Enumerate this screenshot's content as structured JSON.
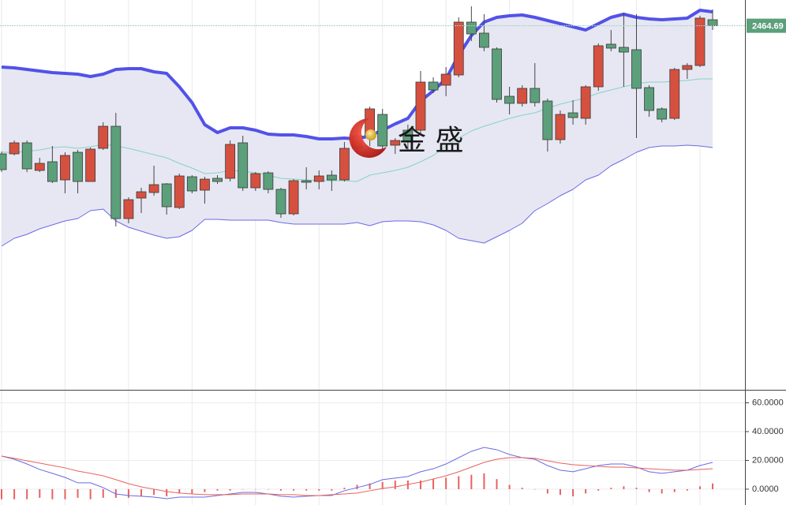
{
  "watermark": "金 盛",
  "chart_data": [
    {
      "type": "candlestick",
      "up_color": "#d6503f",
      "down_color": "#5c9f7b",
      "band_colors": {
        "upper": "#5252e8",
        "middle": "#86d3c6",
        "lower": "#6a6ae6",
        "fill": "#e6e7f2"
      },
      "ylim": [
        2234,
        2481
      ],
      "last_price": {
        "value": 2464.69,
        "label": "2464.69"
      },
      "open": [
        2383.5,
        2383.5,
        2390.5,
        2373,
        2378.5,
        2367,
        2384.5,
        2366,
        2387,
        2401,
        2342.5,
        2355.5,
        2359,
        2364.5,
        2349.5,
        2369,
        2360.5,
        2368,
        2368,
        2390.5,
        2362,
        2371.5,
        2361,
        2345.5,
        2366.5,
        2366,
        2370,
        2367,
        2387,
        2395,
        2408.5,
        2389,
        2398.5,
        2398.5,
        2429,
        2427,
        2433.5,
        2467,
        2460,
        2450,
        2420,
        2415.5,
        2425,
        2417,
        2392.5,
        2409.5,
        2406,
        2426,
        2453,
        2451,
        2449.5,
        2425.5,
        2412,
        2406,
        2437,
        2439.5,
        2468.5
      ],
      "high": [
        2385,
        2392,
        2392,
        2381,
        2388.5,
        2384.5,
        2386,
        2387.5,
        2403.5,
        2409.5,
        2356,
        2362,
        2376,
        2365,
        2371,
        2370,
        2369,
        2370,
        2392,
        2395,
        2372,
        2372.5,
        2362,
        2367.5,
        2375,
        2373,
        2373,
        2391,
        2398.5,
        2413.5,
        2412,
        2393.5,
        2402,
        2436,
        2432,
        2438.5,
        2470,
        2477,
        2472,
        2451,
        2426,
        2427,
        2441,
        2418.5,
        2411,
        2417.5,
        2427,
        2453.5,
        2462,
        2473,
        2472,
        2427,
        2413,
        2438,
        2441,
        2471,
        2475
      ],
      "low": [
        2372,
        2382.5,
        2372,
        2372,
        2365,
        2358.5,
        2358.5,
        2366,
        2386,
        2337.5,
        2339.5,
        2346,
        2357,
        2345,
        2348.5,
        2358.5,
        2352,
        2364.5,
        2366,
        2360,
        2360,
        2358.5,
        2343,
        2344.5,
        2361,
        2361,
        2360,
        2366,
        2383.5,
        2388.5,
        2386,
        2383.5,
        2386,
        2396,
        2422,
        2420,
        2432,
        2455,
        2448.5,
        2416,
        2408.5,
        2413.5,
        2413.5,
        2385,
        2390,
        2402,
        2402,
        2423.5,
        2448.5,
        2426,
        2393.5,
        2407,
        2403.5,
        2405,
        2431,
        2438.5,
        2462
      ],
      "close": [
        2373.5,
        2390.5,
        2374,
        2377.5,
        2366,
        2382.5,
        2366,
        2386.5,
        2401,
        2342.5,
        2354.5,
        2359.5,
        2364,
        2350,
        2369.5,
        2360,
        2367.5,
        2366,
        2389.5,
        2362,
        2371,
        2361,
        2345.5,
        2366.5,
        2365.5,
        2369.5,
        2367,
        2387,
        2395,
        2412,
        2388.5,
        2392,
        2391,
        2429,
        2424,
        2434,
        2467,
        2459.5,
        2451,
        2418,
        2415.5,
        2425,
        2416,
        2392.5,
        2408.5,
        2406.5,
        2426,
        2452,
        2450.5,
        2448,
        2425,
        2411,
        2405.5,
        2437,
        2439.5,
        2469.5,
        2464.69
      ],
      "bands": {
        "upper": [
          2438.5,
          2438,
          2437,
          2436,
          2435,
          2434.5,
          2434,
          2432.5,
          2434,
          2437,
          2437.5,
          2437.5,
          2435.5,
          2434.5,
          2426,
          2416,
          2402,
          2397,
          2400,
          2400,
          2398.5,
          2396,
          2395.5,
          2395.5,
          2394.5,
          2393,
          2393,
          2393.5,
          2393,
          2395,
          2398.5,
          2402.5,
          2406,
          2417,
          2423.5,
          2431,
          2446,
          2458.5,
          2467,
          2470,
          2471,
          2471.5,
          2470,
          2468,
          2466,
          2464,
          2462,
          2466,
          2470,
          2472,
          2470,
          2469,
          2468.5,
          2469,
          2469.5,
          2474.5,
          2473.5
        ],
        "middle": [
          2384.5,
          2384.5,
          2385,
          2386,
          2387.5,
          2388,
          2387,
          2388,
          2389.5,
          2388.5,
          2387,
          2385,
          2383,
          2381,
          2377.5,
          2374.5,
          2371,
          2371.5,
          2373,
          2372.5,
          2371.5,
          2370,
          2368,
          2367.5,
          2367,
          2366.5,
          2366.5,
          2366.5,
          2366,
          2370,
          2371.5,
          2373,
          2375,
          2378.5,
          2382.5,
          2388.5,
          2393.5,
          2398,
          2401,
          2403.5,
          2406,
          2408,
          2409.5,
          2412.5,
          2415,
          2417,
          2419,
          2422,
          2424,
          2426,
          2428,
          2429,
          2429,
          2429.5,
          2430,
          2431,
          2431
        ],
        "lower": [
          2325,
          2330,
          2332.5,
          2336,
          2338.5,
          2341,
          2342.5,
          2347.5,
          2348.5,
          2341,
          2337,
          2334.5,
          2332,
          2330,
          2331,
          2335,
          2342,
          2342,
          2341.5,
          2341.5,
          2341.5,
          2341.5,
          2340,
          2339,
          2339,
          2339,
          2339,
          2339,
          2340,
          2338,
          2340.5,
          2341,
          2341,
          2340.5,
          2338.5,
          2335,
          2330,
          2328.5,
          2327,
          2331,
          2335,
          2339.5,
          2347.5,
          2352,
          2357,
          2361,
          2367,
          2370,
          2376,
          2380,
          2384.5,
          2387.5,
          2388.5,
          2388.5,
          2389,
          2388.5,
          2387.5
        ]
      }
    },
    {
      "type": "macd",
      "ylim": [
        -11,
        68.5
      ],
      "yticks": [
        {
          "value": 60,
          "label": "60.0000"
        },
        {
          "value": 40,
          "label": "40.0000"
        },
        {
          "value": 20,
          "label": "20.0000"
        },
        {
          "value": 0,
          "label": "0.0000"
        }
      ],
      "grid": true,
      "bar_color": "#e8625e",
      "bars": [
        -7,
        -7,
        -7,
        -6,
        -7,
        -7,
        -6,
        -7,
        -6,
        -6,
        -6,
        -5,
        -4,
        -5,
        -3,
        -3,
        -2,
        -1,
        -1,
        0,
        0,
        0,
        -1,
        -1,
        -1,
        -1,
        -1,
        1,
        3,
        4,
        5,
        6,
        6,
        6,
        7,
        8,
        9,
        10,
        11,
        7,
        3,
        1,
        0,
        -3,
        -4,
        -5,
        -3,
        -1,
        1,
        2,
        1,
        -2,
        -3,
        -2,
        -1,
        2,
        4
      ],
      "series": [
        {
          "color": "#6a6ae0",
          "values": [
            23.0,
            20.8,
            17.5,
            13.7,
            11.0,
            8.2,
            4.4,
            4.4,
            1.1,
            -3.3,
            -4.4,
            -4.9,
            -5.5,
            -6.6,
            -5.5,
            -5.5,
            -5.5,
            -4.4,
            -3.3,
            -2.2,
            -2.2,
            -3.3,
            -4.9,
            -5.5,
            -4.9,
            -4.4,
            -4.4,
            -1.1,
            1.1,
            3.3,
            6.6,
            7.7,
            8.8,
            12.1,
            14.2,
            17.5,
            21.9,
            26.3,
            29.0,
            27.4,
            24.1,
            21.9,
            20.8,
            16.4,
            13.2,
            12.1,
            14.2,
            16.4,
            17.5,
            17.5,
            15.3,
            12.1,
            11.0,
            12.1,
            13.2,
            16.4,
            18.6
          ]
        },
        {
          "color": "#e8625e",
          "values": [
            23.0,
            21.4,
            19.7,
            18.1,
            16.4,
            14.8,
            12.6,
            11.0,
            9.3,
            6.6,
            3.8,
            1.6,
            0,
            -1.6,
            -2.7,
            -3.3,
            -3.8,
            -3.8,
            -3.8,
            -3.3,
            -3.3,
            -3.3,
            -3.8,
            -3.8,
            -4.4,
            -4.4,
            -3.8,
            -3.3,
            -2.7,
            -1.1,
            0.5,
            1.6,
            3.3,
            4.9,
            7.1,
            9.3,
            12.1,
            15.3,
            18.6,
            20.8,
            21.9,
            21.9,
            21.4,
            19.7,
            18.1,
            17.0,
            16.4,
            15.9,
            15.3,
            15.3,
            14.8,
            14.2,
            13.7,
            13.2,
            13.2,
            13.7,
            14.2
          ]
        }
      ]
    }
  ]
}
